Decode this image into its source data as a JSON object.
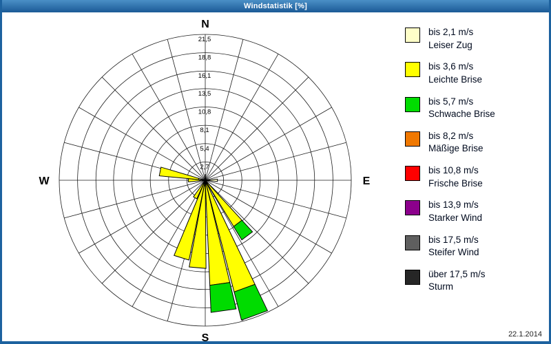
{
  "window": {
    "title_bar": "Windstatistik [%]",
    "date_stamp": "22.1.2014"
  },
  "compass": {
    "north": "N",
    "east": "E",
    "south": "S",
    "west": "W"
  },
  "legend": {
    "items": [
      {
        "speed": "bis 2,1 m/s",
        "name": "Leiser Zug",
        "color": "#FFFFC8"
      },
      {
        "speed": "bis 3,6 m/s",
        "name": "Leichte Brise",
        "color": "#FFFF00"
      },
      {
        "speed": "bis 5,7 m/s",
        "name": "Schwache Brise",
        "color": "#00DC00"
      },
      {
        "speed": "bis 8,2 m/s",
        "name": "Mäßige Brise",
        "color": "#F07800"
      },
      {
        "speed": "bis 10,8 m/s",
        "name": "Frische Brise",
        "color": "#FF0000"
      },
      {
        "speed": "bis 13,9 m/s",
        "name": "Starker Wind",
        "color": "#8C008C"
      },
      {
        "speed": "bis 17,5 m/s",
        "name": "Steifer Wind",
        "color": "#5F5F5F"
      },
      {
        "speed": "über 17,5 m/s",
        "name": "Sturm",
        "color": "#262626"
      }
    ]
  },
  "chart_data": {
    "type": "windrose",
    "title": "Windstatistik [%]",
    "units": "percent frequency",
    "grid_sectors": 24,
    "petal_width_deg": 11,
    "max_value": 21.5,
    "ring_values": [
      2.7,
      5.4,
      8.1,
      10.8,
      13.5,
      16.1,
      18.8,
      21.5
    ],
    "ring_labels": [
      "2,7",
      "5,4",
      "8,1",
      "10,8",
      "13,5",
      "16,1",
      "18,8",
      "21,5"
    ],
    "categories": [
      "bis 2,1 m/s",
      "bis 3,6 m/s",
      "bis 5,7 m/s",
      "bis 8,2 m/s",
      "bis 10,8 m/s",
      "bis 13,9 m/s",
      "bis 17,5 m/s",
      "über 17,5 m/s"
    ],
    "petals": [
      {
        "direction_deg": 143,
        "segments": [
          {
            "category": 1,
            "value": 8.0
          },
          {
            "category": 2,
            "value": 2.3
          }
        ]
      },
      {
        "direction_deg": 160,
        "segments": [
          {
            "category": 1,
            "value": 17.0
          },
          {
            "category": 2,
            "value": 4.3
          }
        ]
      },
      {
        "direction_deg": 172,
        "segments": [
          {
            "category": 1,
            "value": 15.5
          },
          {
            "category": 2,
            "value": 4.0
          }
        ]
      },
      {
        "direction_deg": 185,
        "segments": [
          {
            "category": 1,
            "value": 13.0
          }
        ]
      },
      {
        "direction_deg": 197,
        "segments": [
          {
            "category": 1,
            "value": 12.0
          }
        ]
      },
      {
        "direction_deg": 210,
        "segments": [
          {
            "category": 1,
            "value": 3.0
          }
        ]
      },
      {
        "direction_deg": 90,
        "segments": [
          {
            "category": 0,
            "value": 1.8
          }
        ]
      },
      {
        "direction_deg": 270,
        "segments": [
          {
            "category": 0,
            "value": 0.8
          },
          {
            "category": 1,
            "value": 1.7
          }
        ]
      },
      {
        "direction_deg": 281,
        "segments": [
          {
            "category": 0,
            "value": 1.0
          },
          {
            "category": 1,
            "value": 5.8
          }
        ]
      }
    ]
  }
}
